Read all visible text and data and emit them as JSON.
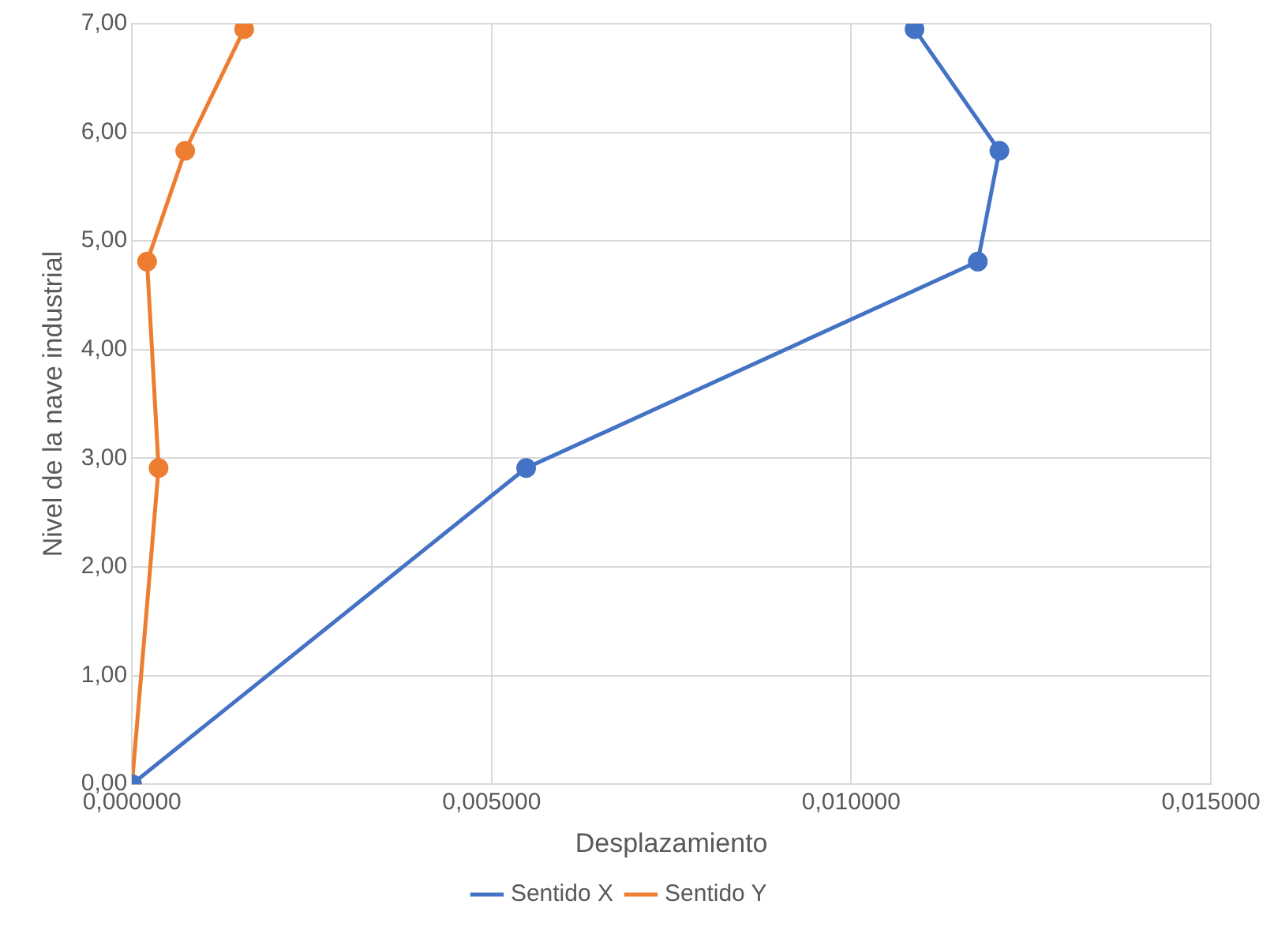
{
  "chart_data": {
    "type": "line",
    "xlabel": "Desplazamiento",
    "ylabel": "Nivel de la nave industrial",
    "xlim": [
      0,
      0.015
    ],
    "xticks": [
      {
        "value": 0,
        "label": "0,000000"
      },
      {
        "value": 0.005,
        "label": "0,005000"
      },
      {
        "value": 0.01,
        "label": "0,010000"
      },
      {
        "value": 0.015,
        "label": "0,015000"
      }
    ],
    "ylim": [
      0,
      7
    ],
    "yticks": [
      {
        "value": 0,
        "label": "0,00"
      },
      {
        "value": 1,
        "label": "1,00"
      },
      {
        "value": 2,
        "label": "2,00"
      },
      {
        "value": 3,
        "label": "3,00"
      },
      {
        "value": 4,
        "label": "4,00"
      },
      {
        "value": 5,
        "label": "5,00"
      },
      {
        "value": 6,
        "label": "6,00"
      },
      {
        "value": 7,
        "label": "7,00"
      }
    ],
    "series": [
      {
        "name": "Sentido X",
        "color": "#4472c4",
        "x": [
          0,
          0.00548,
          0.01176,
          0.01206,
          0.01088
        ],
        "values": [
          0,
          2.91,
          4.81,
          5.83,
          6.95
        ]
      },
      {
        "name": "Sentido Y",
        "color": "#ed7d31",
        "x": [
          0,
          0.00037,
          0.00021,
          0.00074,
          0.00156
        ],
        "values": [
          0,
          2.91,
          4.81,
          5.83,
          6.95
        ]
      }
    ],
    "grid": true,
    "legend": "bottom",
    "marker": "circle",
    "line_style": "solid"
  }
}
